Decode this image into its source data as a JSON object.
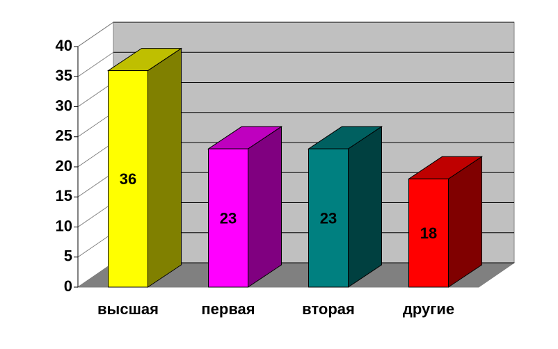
{
  "chart_data": {
    "type": "bar3d",
    "categories": [
      "высшая",
      "первая",
      "вторая",
      "другие"
    ],
    "values": [
      36,
      23,
      23,
      18
    ],
    "colors": [
      "#ffff00",
      "#ff00ff",
      "#008080",
      "#ff0000"
    ],
    "ylim": [
      0,
      40
    ],
    "yticks": [
      0,
      5,
      10,
      15,
      20,
      25,
      30,
      35,
      40
    ],
    "grid": true
  }
}
